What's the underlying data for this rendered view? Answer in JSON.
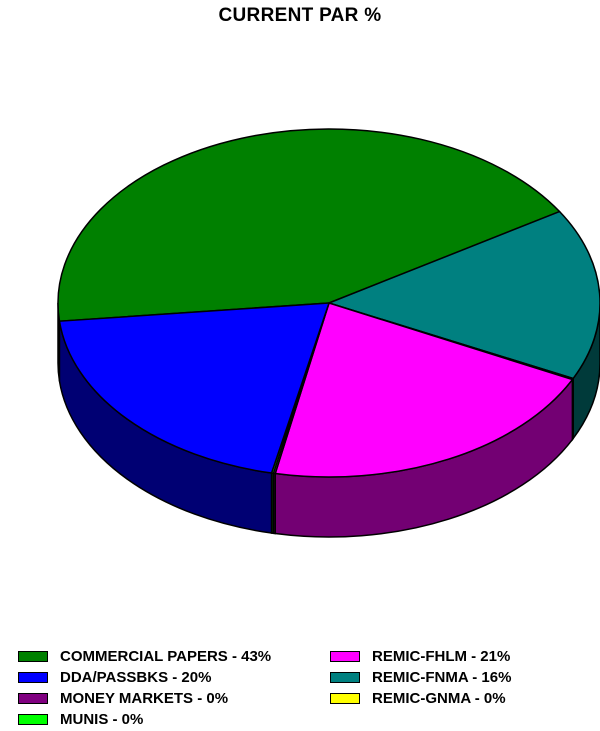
{
  "chart_data": {
    "type": "pie",
    "title": "CURRENT PAR %",
    "slices": [
      {
        "label": "COMMERCIAL PAPERS - 43%",
        "name": "COMMERCIAL PAPERS",
        "value": 43,
        "color": "#008000"
      },
      {
        "label": "DDA/PASSBKS - 20%",
        "name": "DDA/PASSBKS",
        "value": 20,
        "color": "#0000ff"
      },
      {
        "label": "MONEY MARKETS - 0%",
        "name": "MONEY MARKETS",
        "value": 0,
        "color": "#800080"
      },
      {
        "label": "MUNIS - 0%",
        "name": "MUNIS",
        "value": 0,
        "color": "#00ff00"
      },
      {
        "label": "REMIC-FHLM - 21%",
        "name": "REMIC-FHLM",
        "value": 21,
        "color": "#ff00ff"
      },
      {
        "label": "REMIC-FNMA - 16%",
        "name": "REMIC-FNMA",
        "value": 16,
        "color": "#008080"
      },
      {
        "label": "REMIC-GNMA - 0%",
        "name": "REMIC-GNMA",
        "value": 0,
        "color": "#ffff00"
      }
    ],
    "legend_position": "bottom",
    "style": "3d"
  }
}
